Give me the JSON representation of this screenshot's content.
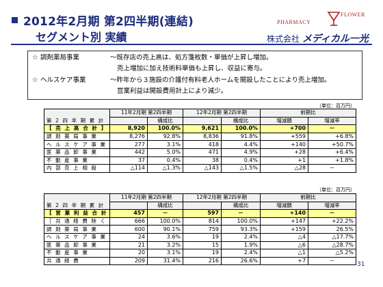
{
  "header": {
    "title_line1": "2012年2月期 第2四半期(連結)",
    "title_line2": "セグメント別 実績",
    "logo_left": "PHARMACY",
    "logo_right": "FLOWER",
    "company_prefix": "株式会社",
    "company_brand": "メディカル一光"
  },
  "summary": [
    {
      "mark": "☆",
      "segment": "調剤薬局事業",
      "text": "～既存店の売上高は、処方箋枚数・単価が上昇し増加。"
    },
    {
      "mark": "",
      "segment": "",
      "text": "売上増加に加え技術料単価も上昇し、収益に寄与。"
    },
    {
      "mark": "☆",
      "segment": "ヘルスケア事業",
      "text": "～昨年から３施設の介護付有料老人ホームを開設したことにより売上増加。"
    },
    {
      "mark": "",
      "segment": "",
      "text": "営業利益は開設費用計上により減少。"
    }
  ],
  "units": {
    "table1": "（単位：百万円）",
    "table2": "（単位：百万円）"
  },
  "table1": {
    "head_a": "11年2月期 第2四半期",
    "head_b": "12年2月期 第2四半期",
    "head_c": "前期比",
    "row_label": "第 2 四 半 期 累 計",
    "sub_ratio_a": "構成比",
    "sub_ratio_b": "構成比",
    "sub_diff": "増減額",
    "sub_rate": "増減率",
    "rows": [
      {
        "label": "【 売 上 高 合 計 】",
        "a": "8,920",
        "ar": "100.0%",
        "b": "9,621",
        "br": "100.0%",
        "d": "+700",
        "r": "－",
        "hl": true
      },
      {
        "label": "調 剤 薬 局 事 業",
        "a": "8,276",
        "ar": "92.8%",
        "b": "8,836",
        "br": "91.8%",
        "d": "+559",
        "r": "+6.8%"
      },
      {
        "label": "ヘ ル ス ケ ア 事 業",
        "a": "277",
        "ar": "3.1%",
        "b": "418",
        "br": "4.4%",
        "d": "+140",
        "r": "+50.7%"
      },
      {
        "label": "医 薬 品 卸 事 業",
        "a": "442",
        "ar": "5.0%",
        "b": "471",
        "br": "4.9%",
        "d": "+28",
        "r": "+6.4%"
      },
      {
        "label": "不 動 産 事 業",
        "a": "37",
        "ar": "0.4%",
        "b": "38",
        "br": "0.4%",
        "d": "+1",
        "r": "+1.8%"
      },
      {
        "label": "内 部 売 上 相 殺",
        "a": "△114",
        "ar": "△1.3%",
        "b": "△143",
        "br": "△1.5%",
        "d": "△28",
        "r": "－"
      }
    ]
  },
  "table2": {
    "head_a": "11年2月期 第2四半期",
    "head_b": "12年2月期 第2四半期",
    "head_c": "前期比",
    "row_label": "第 2 四 半 期 累 計",
    "sub_ratio_a": "構成比",
    "sub_ratio_b": "構成比",
    "sub_diff": "増減額",
    "sub_rate": "増減率",
    "rows": [
      {
        "label": "【 営 業 利 益 合 計 】",
        "a": "457",
        "ar": "－",
        "b": "597",
        "br": "－",
        "d": "+140",
        "r": "－",
        "hl": true
      },
      {
        "label": "［ 共 通 経 費 除 く ］",
        "a": "666",
        "ar": "100.0%",
        "b": "814",
        "br": "100.0%",
        "d": "+147",
        "r": "+22.2%"
      },
      {
        "label": "調 剤 薬 局 事 業",
        "a": "600",
        "ar": "90.1%",
        "b": "759",
        "br": "93.3%",
        "d": "+159",
        "r": "26.5%"
      },
      {
        "label": "ヘ ル ス ケ ア 事 業",
        "a": "24",
        "ar": "3.6%",
        "b": "19",
        "br": "2.4%",
        "d": "△4",
        "r": "△17.7%"
      },
      {
        "label": "医 薬 品 卸 事 業",
        "a": "21",
        "ar": "3.2%",
        "b": "15",
        "br": "1.9%",
        "d": "△6",
        "r": "△28.7%"
      },
      {
        "label": "不 動 産 事 業",
        "a": "20",
        "ar": "3.1%",
        "b": "19",
        "br": "2.4%",
        "d": "△1",
        "r": "△5.2%"
      },
      {
        "label": "共 通 経 費",
        "a": "209",
        "ar": "31.4%",
        "b": "216",
        "br": "26.6%",
        "d": "+7",
        "r": "－"
      }
    ]
  },
  "page_number": "31"
}
